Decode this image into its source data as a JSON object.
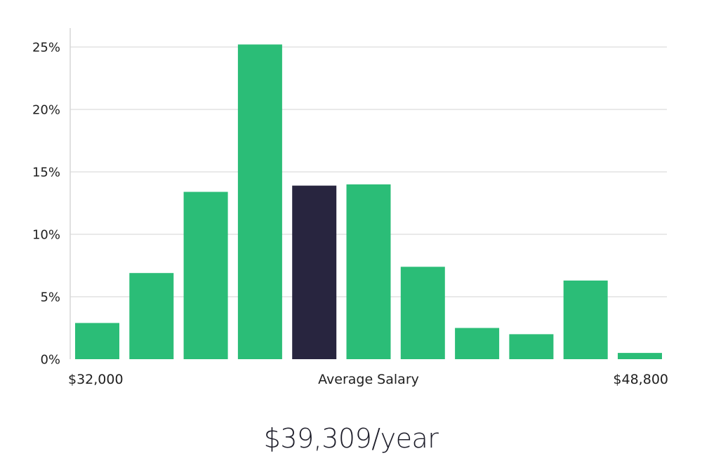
{
  "chart_data": {
    "type": "bar",
    "values": [
      2.9,
      6.9,
      13.4,
      25.2,
      13.9,
      14.0,
      7.4,
      2.5,
      2.0,
      6.3,
      0.5
    ],
    "highlight_index": 4,
    "ylim": [
      0,
      25
    ],
    "yticks": [
      "0%",
      "5%",
      "10%",
      "15%",
      "20%",
      "25%"
    ],
    "ytick_values": [
      0,
      5,
      10,
      15,
      20,
      25
    ],
    "x_labels": {
      "left": "$32,000",
      "center": "Average Salary",
      "right": "$48,800"
    },
    "grid": true,
    "colors": {
      "bar": "#2bbd77",
      "highlight": "#28253f",
      "grid": "#e2e2e2",
      "axis": "#d6d6d6"
    }
  },
  "summary": {
    "salary": "$39,309/year"
  }
}
